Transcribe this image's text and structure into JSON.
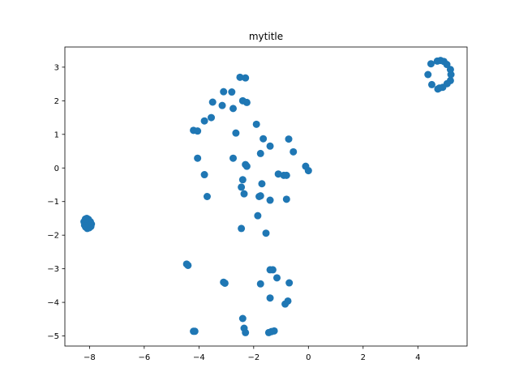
{
  "chart_data": {
    "type": "scatter",
    "title": "mytitle",
    "xlabel": "",
    "ylabel": "",
    "xlim": [
      -8.9,
      5.8
    ],
    "ylim": [
      -5.3,
      3.6
    ],
    "xticks": [
      -8,
      -6,
      -4,
      -2,
      0,
      2,
      4
    ],
    "yticks": [
      -5,
      -4,
      -3,
      -2,
      -1,
      0,
      1,
      2,
      3
    ],
    "grid": false,
    "marker_color": "#1f77b4",
    "series": [
      {
        "x": [
          4.83,
          4.95,
          5.06,
          5.19,
          5.21,
          5.19,
          5.07,
          4.91,
          4.73,
          4.51,
          4.37,
          4.48,
          4.71,
          4.79,
          -8.1,
          -8.04,
          -7.97,
          -7.93,
          -7.95,
          -8.01,
          -8.08,
          -8.14,
          -8.18,
          -8.2,
          -8.15,
          -2.5,
          -2.3,
          -2.8,
          -3.1,
          -3.5,
          -2.4,
          -2.25,
          -2.75,
          -3.15,
          -3.55,
          -3.8,
          -4.05,
          -4.2,
          -1.9,
          -2.65,
          -1.65,
          -1.4,
          -0.72,
          -0.55,
          -1.75,
          -0.1,
          -4.05,
          -2.75,
          -2.25,
          -2.3,
          -1.1,
          -0.9,
          -0.8,
          -2.4,
          -2.45,
          -1.7,
          -3.8,
          -2.35,
          -1.8,
          -1.75,
          -1.4,
          -0.8,
          -3.7,
          0.0,
          -2.45,
          -1.85,
          -1.55,
          -4.45,
          -4.4,
          -3.1,
          -3.05,
          -1.4,
          -1.3,
          -1.15,
          -0.7,
          -1.75,
          -1.4,
          -0.75,
          -0.85,
          -2.4,
          -2.35,
          -2.3,
          -4.15,
          -4.2,
          -1.45,
          -1.35,
          -1.25
        ],
        "y": [
          3.2,
          3.17,
          3.08,
          2.93,
          2.78,
          2.6,
          2.51,
          2.4,
          2.35,
          2.48,
          2.78,
          3.1,
          3.18,
          2.38,
          -1.5,
          -1.53,
          -1.6,
          -1.67,
          -1.74,
          -1.78,
          -1.8,
          -1.76,
          -1.7,
          -1.6,
          -1.52,
          2.7,
          2.68,
          2.26,
          2.27,
          1.96,
          2.0,
          1.95,
          1.77,
          1.86,
          1.5,
          1.4,
          1.1,
          1.12,
          1.3,
          1.04,
          0.87,
          0.65,
          0.86,
          0.48,
          0.43,
          0.05,
          0.29,
          0.29,
          0.05,
          0.1,
          -0.18,
          -0.22,
          -0.22,
          -0.35,
          -0.57,
          -0.47,
          -0.2,
          -0.77,
          -0.85,
          -0.83,
          -0.96,
          -0.93,
          -0.85,
          -0.08,
          -1.8,
          -1.42,
          -1.94,
          -2.86,
          -2.9,
          -3.4,
          -3.43,
          -3.03,
          -3.03,
          -3.27,
          -3.42,
          -3.45,
          -3.87,
          -3.96,
          -4.05,
          -4.48,
          -4.77,
          -4.9,
          -4.86,
          -4.86,
          -4.9,
          -4.87,
          -4.85
        ]
      }
    ]
  }
}
